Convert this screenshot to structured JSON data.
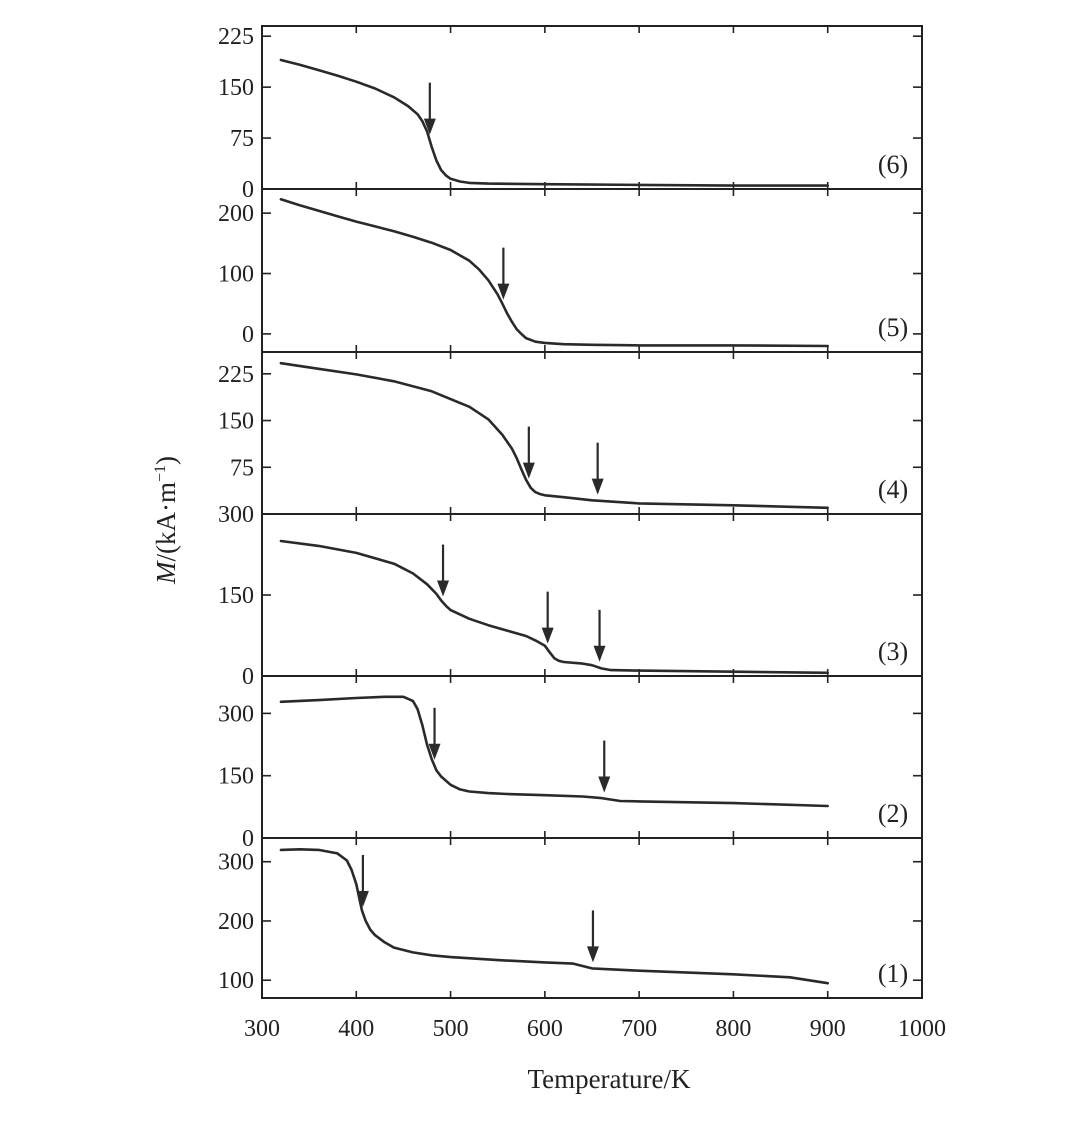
{
  "chart_data": {
    "type": "line",
    "layout": "stacked panels sharing x axis",
    "xlabel": "Temperature/K",
    "ylabel_italic": "M",
    "ylabel_rest": "/(kA·m",
    "ylabel_sup": "−1",
    "ylabel_close": ")",
    "x_ticks": [
      "300",
      "400",
      "500",
      "600",
      "700",
      "800",
      "900",
      "1000"
    ],
    "x_tick_values": [
      300,
      400,
      500,
      600,
      700,
      800,
      900,
      1000
    ],
    "xlim": [
      300,
      1000
    ],
    "line_color": "#2a2a2a",
    "panels": [
      {
        "label": "(6)",
        "ylim": [
          0,
          240
        ],
        "y_ticks": [
          "0",
          "75",
          "150",
          "225"
        ],
        "y_tick_values": [
          0,
          75,
          150,
          225
        ],
        "x": [
          320,
          340,
          360,
          380,
          400,
          420,
          440,
          455,
          465,
          470,
          475,
          480,
          485,
          490,
          495,
          500,
          510,
          520,
          540,
          600,
          700,
          800,
          900
        ],
        "y": [
          190,
          183,
          175,
          167,
          158,
          148,
          135,
          122,
          110,
          100,
          85,
          62,
          42,
          28,
          20,
          15,
          11,
          9,
          8,
          7,
          6,
          5,
          5
        ],
        "arrows": [
          478
        ]
      },
      {
        "label": "(5)",
        "ylim": [
          -30,
          240
        ],
        "y_ticks": [
          "0",
          "100",
          "200"
        ],
        "y_tick_values": [
          0,
          100,
          200
        ],
        "x": [
          320,
          340,
          360,
          380,
          400,
          420,
          440,
          460,
          480,
          500,
          520,
          530,
          540,
          550,
          555,
          560,
          565,
          570,
          575,
          580,
          590,
          600,
          620,
          650,
          700,
          800,
          900
        ],
        "y": [
          223,
          213,
          204,
          195,
          186,
          178,
          170,
          161,
          151,
          139,
          121,
          107,
          89,
          65,
          50,
          34,
          20,
          8,
          0,
          -7,
          -13,
          -15,
          -17,
          -18,
          -19,
          -19,
          -20
        ],
        "arrows": [
          556
        ]
      },
      {
        "label": "(4)",
        "ylim": [
          0,
          260
        ],
        "y_ticks": [
          "75",
          "150",
          "225"
        ],
        "y_tick_values": [
          75,
          150,
          225
        ],
        "x": [
          320,
          360,
          400,
          440,
          480,
          520,
          540,
          555,
          565,
          570,
          575,
          580,
          585,
          590,
          595,
          600,
          620,
          650,
          700,
          800,
          900
        ],
        "y": [
          242,
          233,
          224,
          213,
          197,
          172,
          152,
          127,
          105,
          90,
          72,
          55,
          42,
          35,
          32,
          30,
          27,
          22,
          17,
          14,
          10
        ],
        "arrows": [
          583,
          656
        ]
      },
      {
        "label": "(3)",
        "ylim": [
          0,
          300
        ],
        "y_ticks": [
          "0",
          "150",
          "300"
        ],
        "y_tick_values": [
          0,
          150,
          300
        ],
        "x": [
          320,
          360,
          400,
          440,
          460,
          475,
          485,
          490,
          495,
          500,
          520,
          540,
          560,
          580,
          590,
          600,
          605,
          610,
          615,
          620,
          640,
          650,
          660,
          670,
          700,
          800,
          900
        ],
        "y": [
          250,
          241,
          228,
          208,
          190,
          170,
          152,
          140,
          130,
          122,
          106,
          94,
          84,
          74,
          66,
          56,
          44,
          33,
          28,
          26,
          23,
          20,
          14,
          11,
          10,
          8,
          6
        ],
        "arrows": [
          492,
          603,
          658
        ]
      },
      {
        "label": "(2)",
        "ylim": [
          0,
          390
        ],
        "y_ticks": [
          "0",
          "150",
          "300"
        ],
        "y_tick_values": [
          0,
          150,
          300
        ],
        "x": [
          320,
          360,
          400,
          430,
          450,
          460,
          465,
          470,
          475,
          480,
          485,
          490,
          500,
          510,
          520,
          540,
          560,
          600,
          640,
          660,
          680,
          700,
          800,
          900
        ],
        "y": [
          328,
          332,
          337,
          340,
          340,
          330,
          310,
          272,
          225,
          190,
          163,
          148,
          128,
          117,
          112,
          108,
          106,
          103,
          100,
          96,
          89,
          88,
          84,
          77
        ],
        "arrows": [
          483,
          663
        ]
      },
      {
        "label": "(1)",
        "ylim": [
          70,
          340
        ],
        "y_ticks": [
          "100",
          "200",
          "300"
        ],
        "y_tick_values": [
          100,
          200,
          300
        ],
        "x": [
          320,
          340,
          360,
          380,
          390,
          395,
          400,
          403,
          406,
          410,
          415,
          420,
          430,
          440,
          460,
          480,
          500,
          550,
          600,
          630,
          650,
          700,
          800,
          860,
          900
        ],
        "y": [
          320,
          321,
          320,
          314,
          302,
          286,
          262,
          240,
          218,
          200,
          185,
          176,
          164,
          155,
          147,
          142,
          139,
          134,
          130,
          128,
          120,
          116,
          110,
          105,
          95
        ],
        "arrows": [
          407,
          651
        ]
      }
    ]
  }
}
